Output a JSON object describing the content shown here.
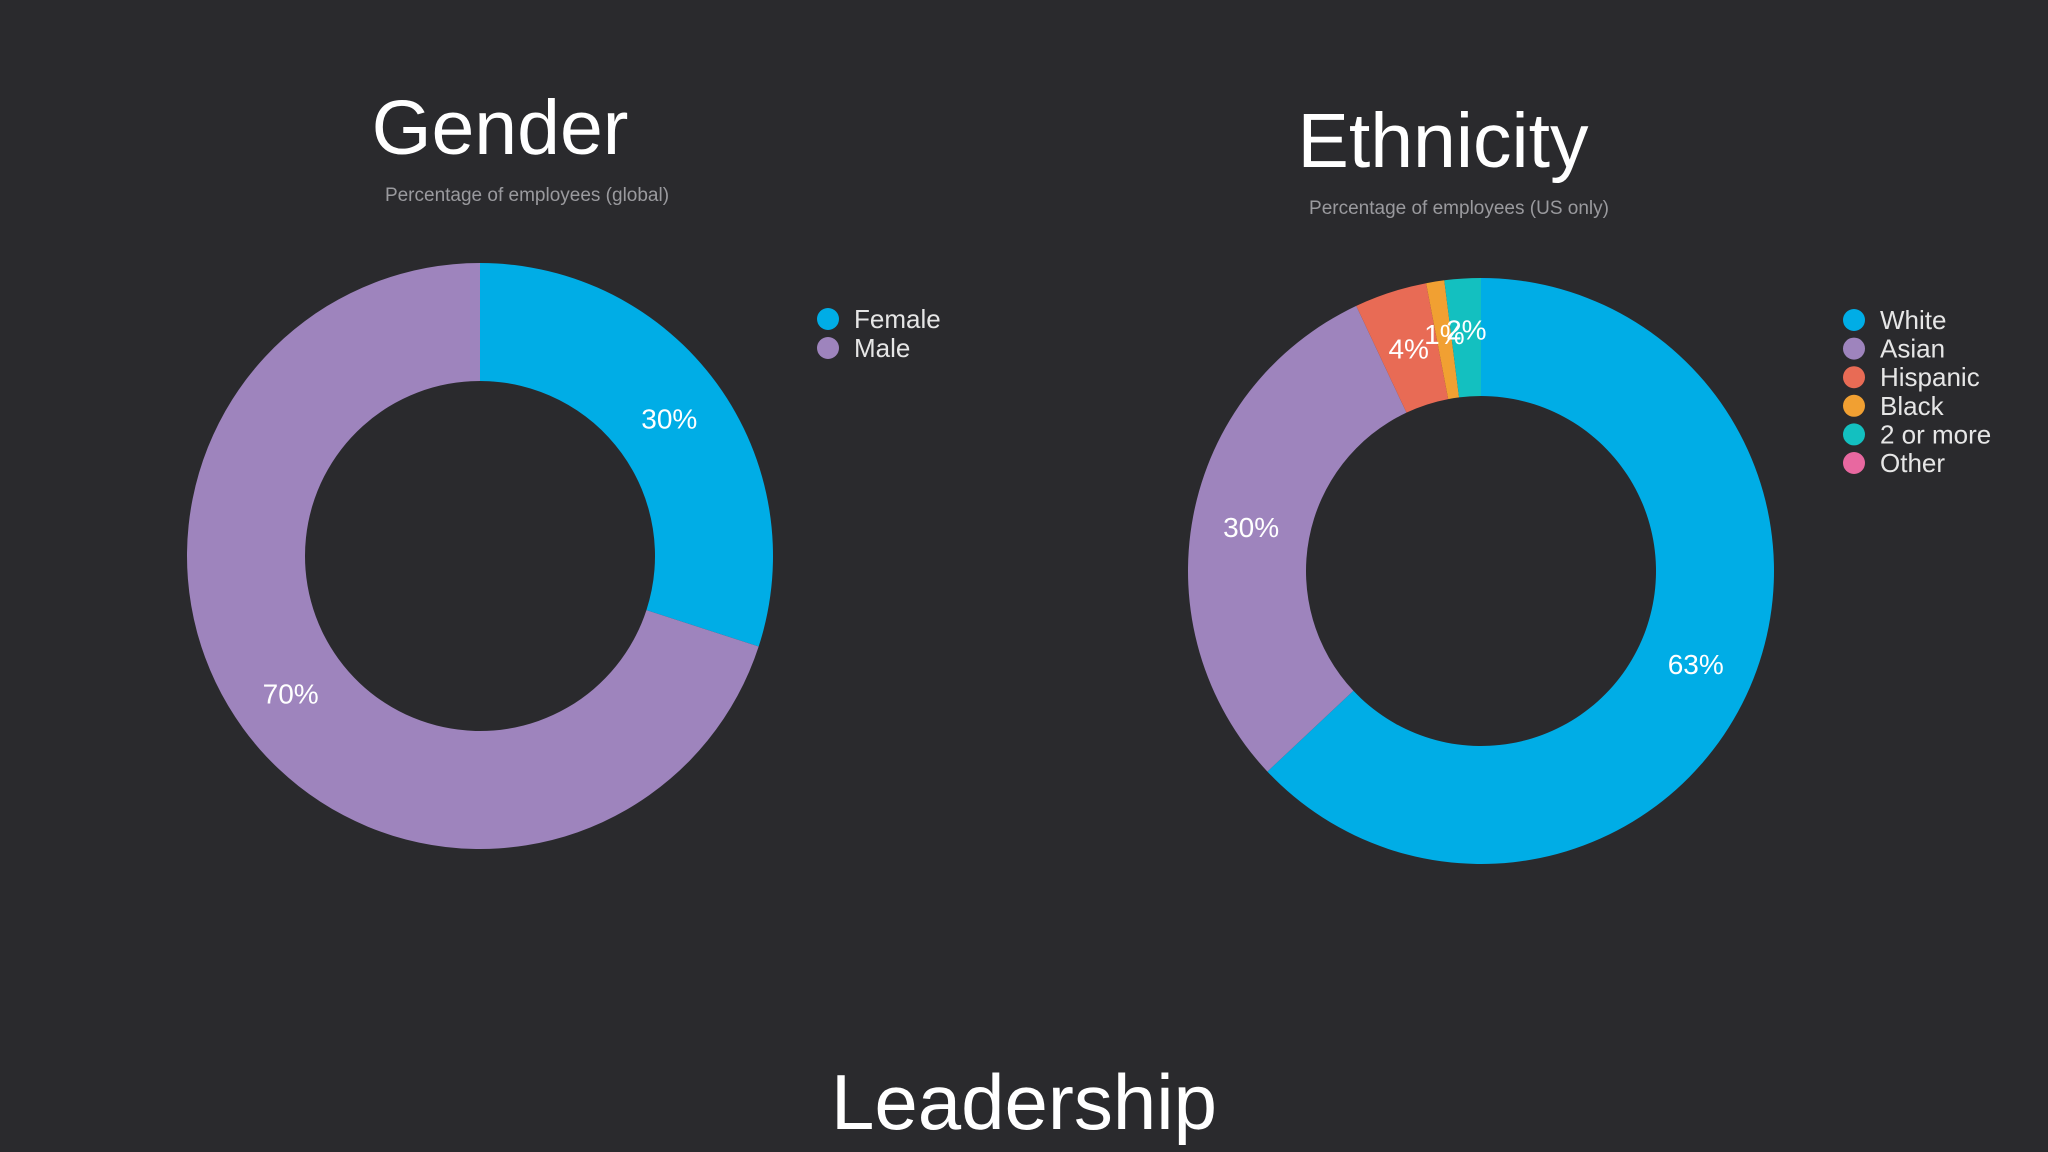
{
  "chart_data": [
    {
      "type": "pie",
      "title": "Gender",
      "subtitle": "Percentage of employees (global)",
      "legend_position": "right",
      "labels": [
        "Female",
        "Male"
      ],
      "values": [
        30,
        70
      ],
      "data_labels": [
        "30%",
        "70%"
      ],
      "colors": [
        "#00ade6",
        "#9e84bd"
      ]
    },
    {
      "type": "pie",
      "title": "Ethnicity",
      "subtitle": "Percentage of employees (US only)",
      "legend_position": "right",
      "labels": [
        "White",
        "Asian",
        "Hispanic",
        "Black",
        "2 or more",
        "Other"
      ],
      "values": [
        63,
        30,
        4,
        1,
        2,
        0
      ],
      "data_labels": [
        "63%",
        "30%",
        "4%",
        "1%",
        "2%",
        ""
      ],
      "colors": [
        "#00ade6",
        "#9e84bd",
        "#e86b55",
        "#f1a032",
        "#13c0c0",
        "#e868a0"
      ]
    }
  ],
  "footer": {
    "heading": "Leadership"
  }
}
